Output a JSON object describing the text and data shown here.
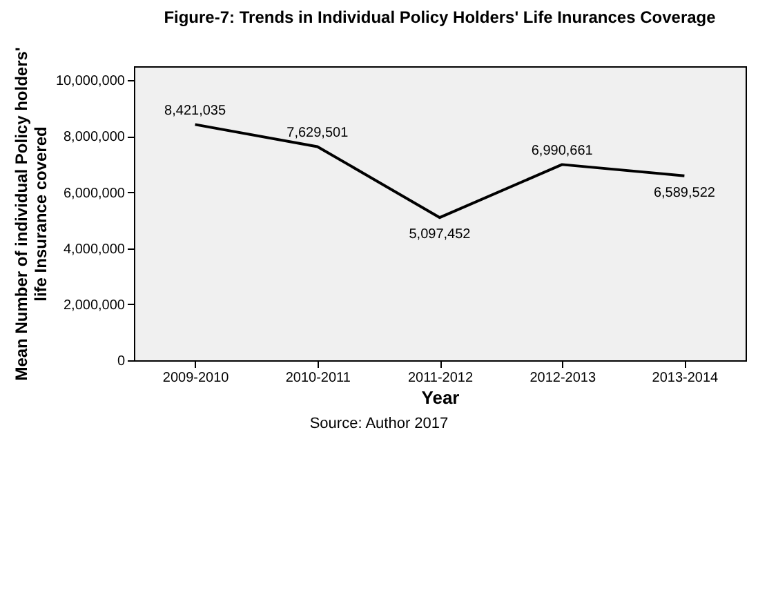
{
  "chart_data": {
    "type": "line",
    "title": "Figure-7: Trends in Individual Policy Holders' Life Inurances Coverage",
    "xlabel": "Year",
    "ylabel": "Mean Number of individual Policy holders' life Insurance covered",
    "categories": [
      "2009-2010",
      "2010-2011",
      "2011-2012",
      "2012-2013",
      "2013-2014"
    ],
    "series": [
      {
        "color": "#000000",
        "values": [
          8421035,
          7629501,
          5097452,
          6990661,
          6589522
        ],
        "value_labels": [
          "8,421,035",
          "7,629,501",
          "5,097,452",
          "6,990,661",
          "6,589,522"
        ]
      }
    ],
    "ylim": [
      0,
      10500000
    ],
    "yticks": [
      {
        "value": 0,
        "label": "0"
      },
      {
        "value": 2000000,
        "label": "2,000,000"
      },
      {
        "value": 4000000,
        "label": "4,000,000"
      },
      {
        "value": 6000000,
        "label": "6,000,000"
      },
      {
        "value": 8000000,
        "label": "8,000,000"
      },
      {
        "value": 10000000,
        "label": "10,000,000"
      }
    ],
    "grid": false,
    "legend": false,
    "marker": "none",
    "line_style": "solid",
    "annotations": [
      "Source: Author 2017"
    ]
  }
}
